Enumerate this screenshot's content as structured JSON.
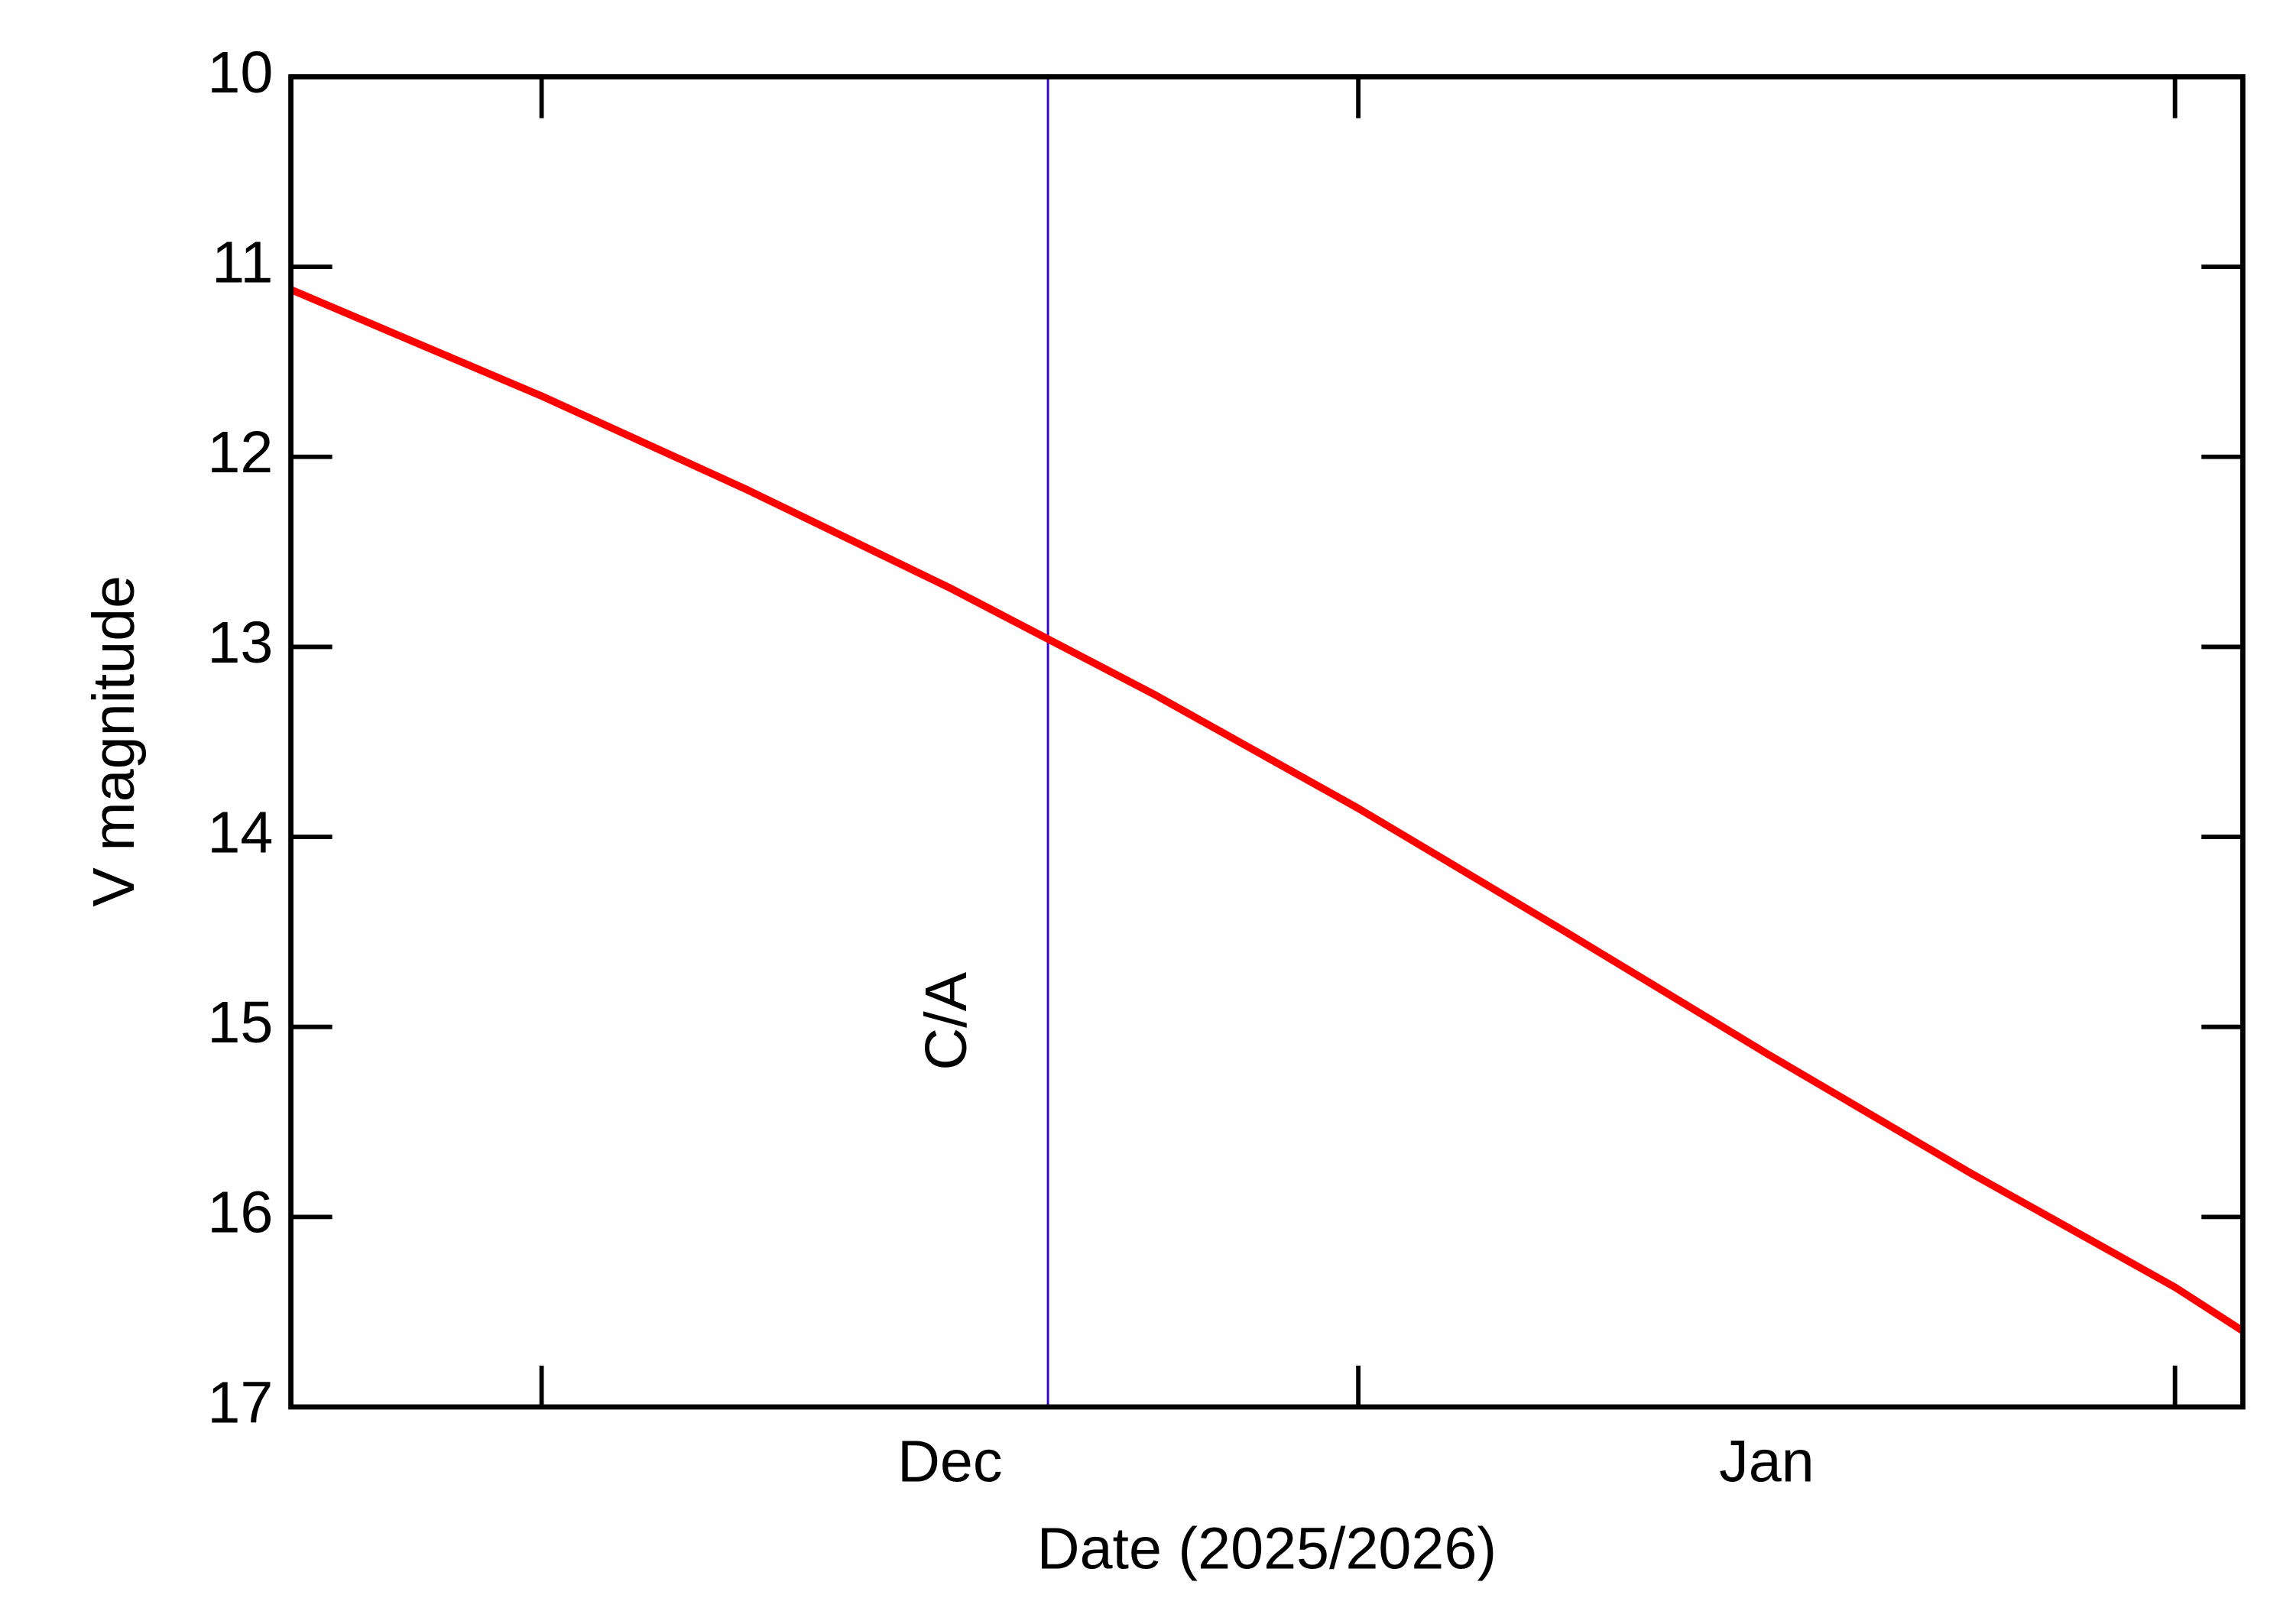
{
  "chart_data": {
    "type": "line",
    "x_label": "Date (2025/2026)",
    "y_label": "V magnitude",
    "categories": [
      "Dec",
      "Jan"
    ],
    "xlim": [
      -0.307,
      2.083
    ],
    "xticks": [
      0,
      1,
      2
    ],
    "ylim": [
      10,
      17
    ],
    "yticks": [
      10,
      11,
      12,
      13,
      14,
      15,
      16,
      17
    ],
    "invert_y": true,
    "series": [
      {
        "color": "#ff0000",
        "x": [
          -0.307,
          0,
          0.25,
          0.5,
          0.75,
          1,
          1.25,
          1.5,
          1.75,
          2,
          2.083
        ],
        "values": [
          11.12,
          11.68,
          12.17,
          12.69,
          13.25,
          13.85,
          14.49,
          15.14,
          15.77,
          16.37,
          16.6
        ]
      }
    ],
    "annotations": [
      {
        "text": "C/A",
        "x": 0.62,
        "color": "#3300cc"
      }
    ]
  }
}
